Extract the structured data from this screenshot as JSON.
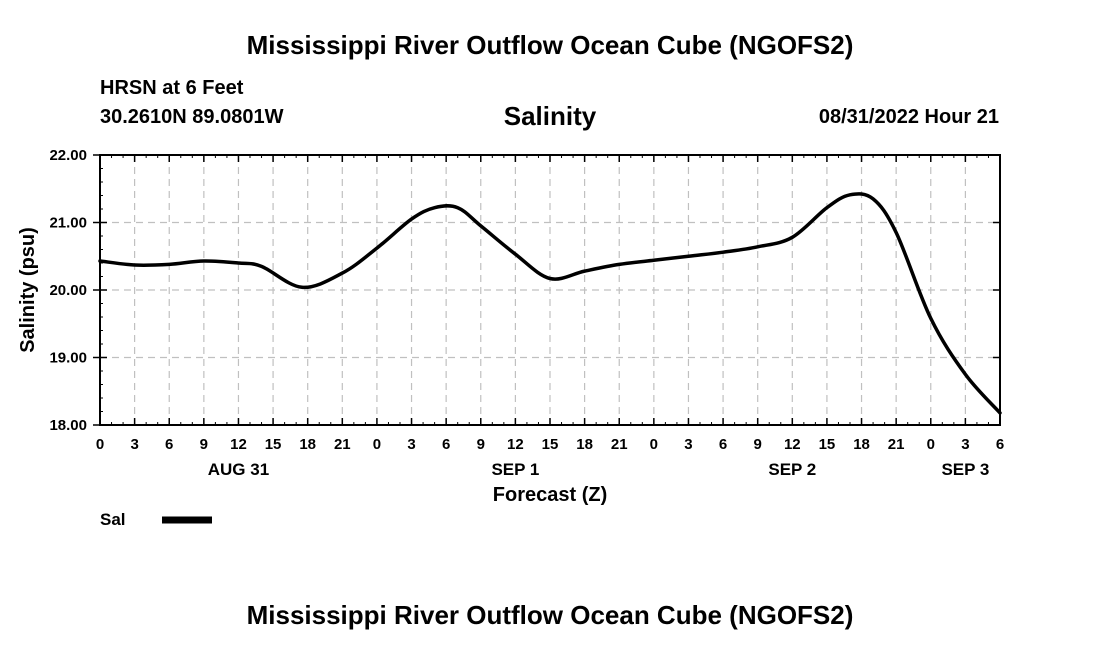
{
  "header": {
    "title": "Mississippi River Outflow Ocean Cube (NGOFS2)",
    "station": "HRSN at 6 Feet",
    "coords": "30.2610N  89.0801W",
    "subtitle": "Salinity",
    "datetime": "08/31/2022 Hour 21"
  },
  "footer": {
    "title": "Mississippi River Outflow Ocean Cube (NGOFS2)"
  },
  "chart_data": {
    "type": "line",
    "title": "Salinity",
    "xlabel": "Forecast (Z)",
    "ylabel": "Salinity (psu)",
    "xlim": [
      0,
      78
    ],
    "ylim": [
      18.0,
      22.0
    ],
    "y_ticks": [
      "18.00",
      "19.00",
      "20.00",
      "21.00",
      "22.00"
    ],
    "x_tick_labels": [
      "0",
      "3",
      "6",
      "9",
      "12",
      "15",
      "18",
      "21",
      "0",
      "3",
      "6",
      "9",
      "12",
      "15",
      "18",
      "21",
      "0",
      "3",
      "6",
      "9",
      "12",
      "15",
      "18",
      "21",
      "0",
      "3",
      "6"
    ],
    "day_labels": [
      {
        "label": "AUG 31",
        "hour": 12
      },
      {
        "label": "SEP 1",
        "hour": 36
      },
      {
        "label": "SEP 2",
        "hour": 60
      },
      {
        "label": "SEP 3",
        "hour": 75
      }
    ],
    "grid": true,
    "series": [
      {
        "name": "Sal",
        "color": "#000000",
        "x": [
          0,
          3,
          6,
          9,
          12,
          14,
          17.5,
          21,
          24,
          27,
          29,
          31,
          33,
          36,
          39,
          42,
          45,
          48,
          51,
          54,
          57,
          60,
          63,
          65,
          67,
          69,
          72,
          75,
          78
        ],
        "values": [
          20.43,
          20.37,
          20.38,
          20.43,
          20.4,
          20.35,
          20.04,
          20.25,
          20.62,
          21.05,
          21.22,
          21.22,
          20.95,
          20.53,
          20.17,
          20.28,
          20.38,
          20.44,
          20.5,
          20.56,
          20.64,
          20.78,
          21.22,
          21.41,
          21.35,
          20.85,
          19.58,
          18.75,
          18.18
        ]
      }
    ],
    "legend": {
      "position": "bottom-left",
      "label": "Sal"
    }
  }
}
